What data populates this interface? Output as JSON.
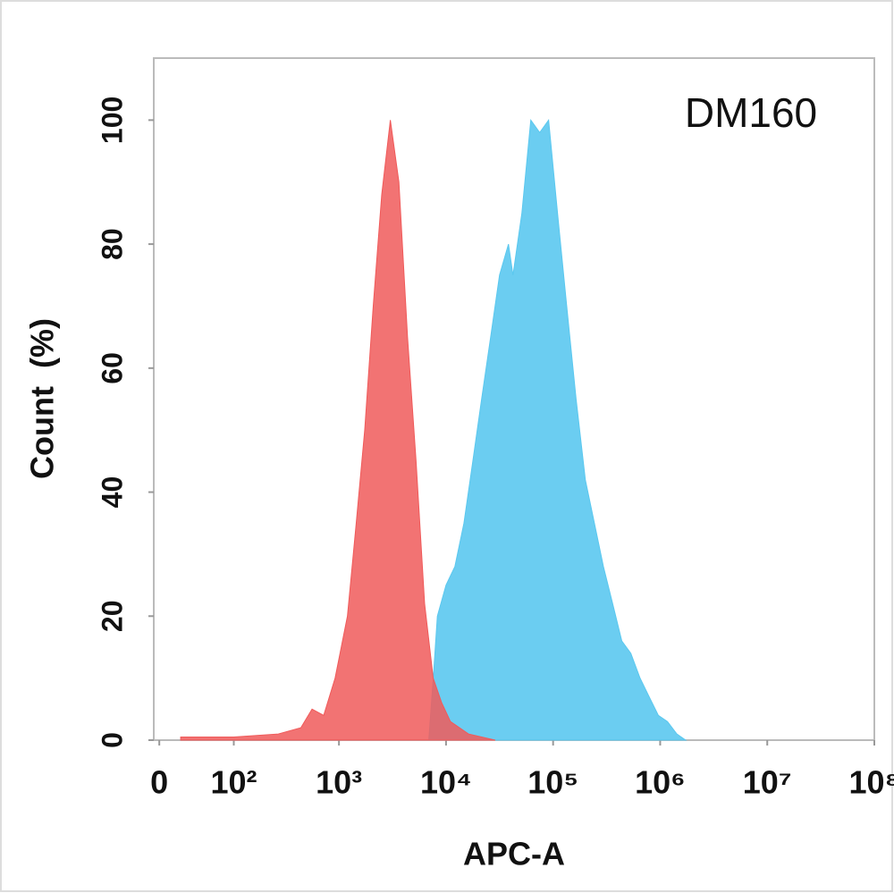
{
  "chart_data": {
    "type": "area",
    "annotation": "DM160",
    "x_label": "APC-A",
    "y_label": "Count  (%)",
    "xscale": "asinh",
    "asinh_width": 42,
    "xlim": [
      -5,
      100000000
    ],
    "xticks": [
      0,
      {
        "value": 100,
        "label": "10²"
      },
      {
        "value": 1000,
        "label": "10³"
      },
      {
        "value": 10000,
        "label": "10⁴"
      },
      {
        "value": 100000,
        "label": "10⁵"
      },
      {
        "value": 1000000,
        "label": "10⁶"
      },
      {
        "value": 10000000,
        "label": "10⁷"
      },
      {
        "value": 100000000,
        "label": "10⁸"
      }
    ],
    "ylim": [
      0,
      110
    ],
    "yticks": [
      0,
      20,
      40,
      60,
      80,
      100
    ],
    "series": [
      {
        "color": "#5bc8ef",
        "x": [
          6900,
          7600,
          8300,
          10000,
          12100,
          14700,
          17800,
          21500,
          26100,
          31600,
          38300,
          42200,
          51100,
          61900,
          75000,
          90800,
          110000,
          134000,
          164000,
          200000,
          243000,
          295000,
          360000,
          438000,
          532000,
          649000,
          789000,
          961000,
          1170000,
          1430000,
          1730000
        ],
        "values": [
          0,
          10,
          20,
          25,
          28,
          35,
          45,
          55,
          65,
          75,
          80,
          75,
          85,
          100,
          98,
          100,
          85,
          70,
          55,
          42,
          35,
          28,
          22,
          16,
          14,
          10,
          7,
          4,
          3,
          1,
          0
        ]
      },
      {
        "color": "#f05a5a",
        "x": [
          20,
          100,
          270,
          440,
          560,
          720,
          920,
          1200,
          1450,
          1740,
          2090,
          2510,
          3020,
          3630,
          4370,
          5250,
          6310,
          7590,
          9120,
          11000,
          16200,
          28800
        ],
        "values": [
          0.5,
          0.5,
          1,
          2,
          5,
          4,
          10,
          20,
          35,
          50,
          70,
          88,
          100,
          90,
          65,
          45,
          22,
          10,
          6,
          3,
          1,
          0
        ]
      }
    ]
  }
}
